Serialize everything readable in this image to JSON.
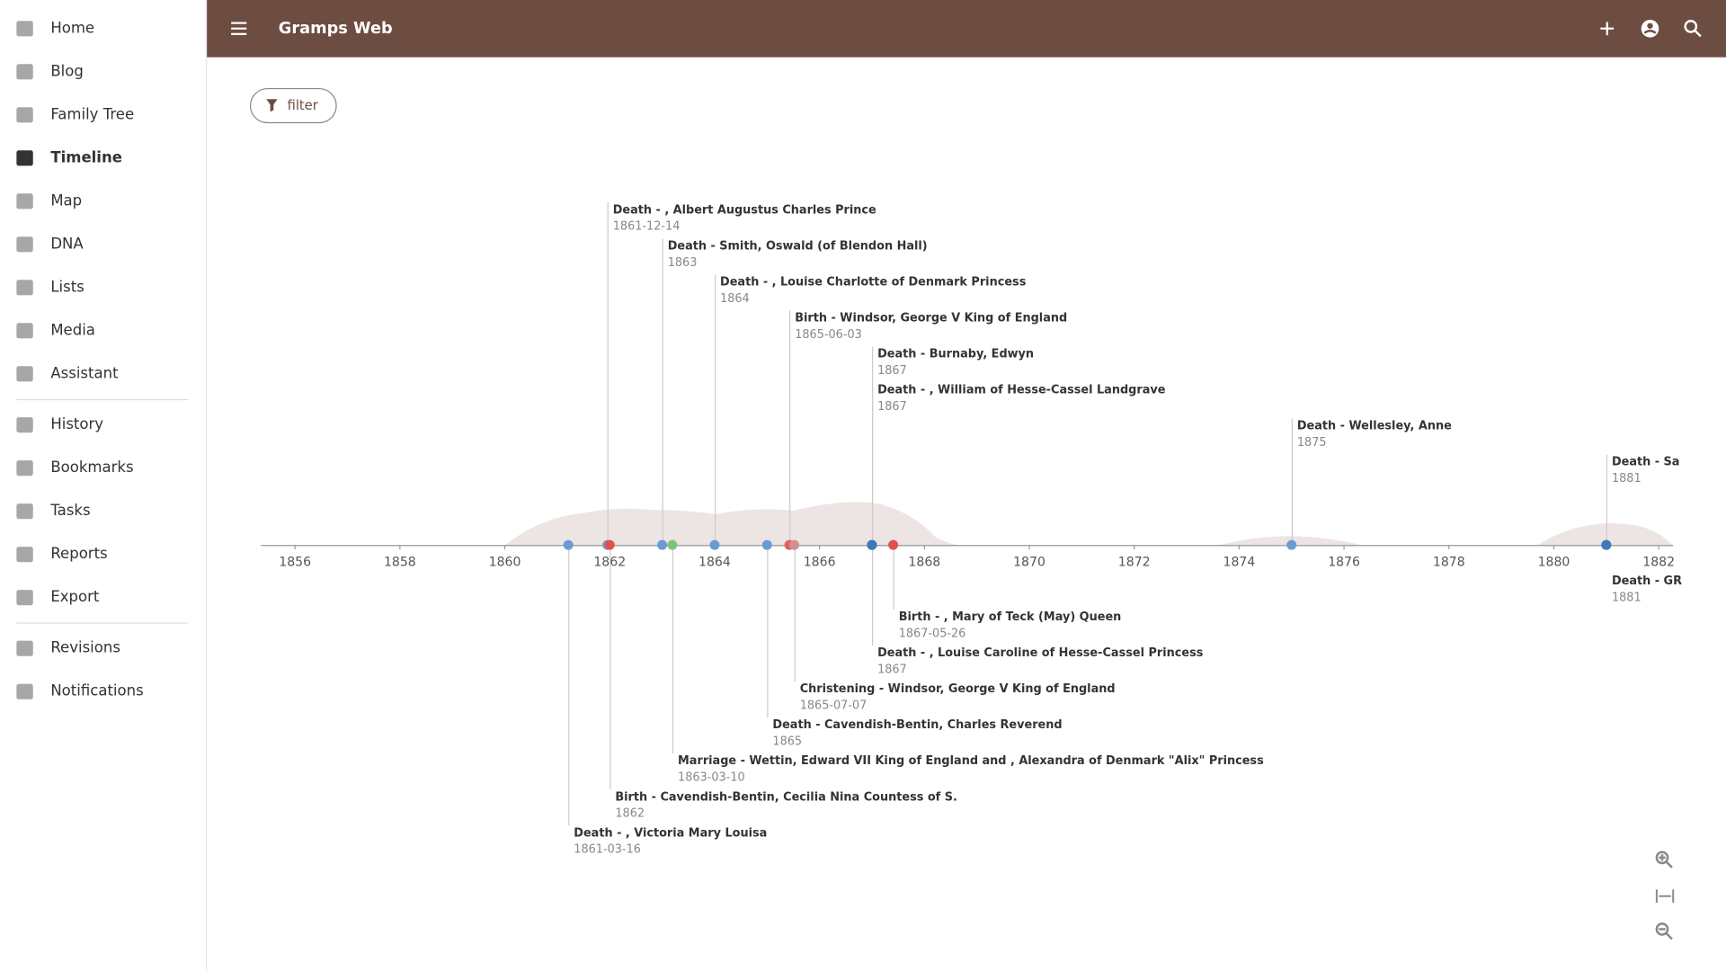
{
  "app_bar": {
    "title": "Gramps Web"
  },
  "nav": {
    "main": [
      {
        "label": "Home"
      },
      {
        "label": "Blog"
      },
      {
        "label": "Family Tree"
      },
      {
        "label": "Timeline",
        "active": true
      },
      {
        "label": "Map"
      },
      {
        "label": "DNA"
      },
      {
        "label": "Lists"
      },
      {
        "label": "Media"
      },
      {
        "label": "Assistant"
      }
    ],
    "secondary": [
      {
        "label": "History"
      },
      {
        "label": "Bookmarks"
      },
      {
        "label": "Tasks"
      },
      {
        "label": "Reports"
      },
      {
        "label": "Export"
      }
    ],
    "tertiary": [
      {
        "label": "Revisions"
      },
      {
        "label": "Notifications"
      }
    ]
  },
  "filter": {
    "label": "filter"
  },
  "timeline": {
    "axis_ticks": [
      1856,
      1858,
      1860,
      1862,
      1864,
      1866,
      1868,
      1870,
      1872,
      1874,
      1876,
      1878,
      1880,
      1882
    ],
    "events_above": [
      {
        "label": "Death - , Albert Augustus Charles Prince",
        "date": "1861-12-14",
        "color": "#6b9bd2"
      },
      {
        "label": "Death - Smith, Oswald (of Blendon Hall)",
        "date": "1863",
        "color": "#6b9bd2"
      },
      {
        "label": "Death - , Louise Charlotte of Denmark Princess",
        "date": "1864",
        "color": "#6b9bd2"
      },
      {
        "label": "Birth - Windsor, George V King of England",
        "date": "1865-06-03",
        "color": "#e06060"
      },
      {
        "label": "Death - Burnaby, Edwyn",
        "date": "1867",
        "color": "#3d79b8"
      },
      {
        "label": "Death - , William of Hesse-Cassel Landgrave",
        "date": "1867",
        "color": "#3d79b8"
      },
      {
        "label": "Death - Wellesley, Anne",
        "date": "1875",
        "color": "#6b9bd2"
      },
      {
        "label": "Death - Sa",
        "date": "1881",
        "color": "#3d79b8"
      }
    ],
    "events_below": [
      {
        "label": "Death - GR",
        "date": "1881",
        "color": "#3d79b8"
      },
      {
        "label": "Birth - , Mary of Teck (May) Queen",
        "date": "1867-05-26",
        "color": "#e05050"
      },
      {
        "label": "Death - , Louise Caroline of Hesse-Cassel Princess",
        "date": "1867",
        "color": "#3d79b8"
      },
      {
        "label": "Christening - Windsor, George V King of England",
        "date": "1865-07-07",
        "color": "#d09090"
      },
      {
        "label": "Death - Cavendish-Bentin, Charles Reverend",
        "date": "1865",
        "color": "#6b9bd2"
      },
      {
        "label": "Marriage - Wettin, Edward VII King of England and , Alexandra of Denmark \"Alix\" Princess",
        "date": "1863-03-10",
        "color": "#7cc47c"
      },
      {
        "label": "Birth - Cavendish-Bentin, Cecilia Nina Countess of S.",
        "date": "1862",
        "color": "#e05050"
      },
      {
        "label": "Death - , Victoria Mary Louisa",
        "date": "1861-03-16",
        "color": "#6b9bd2"
      }
    ]
  }
}
